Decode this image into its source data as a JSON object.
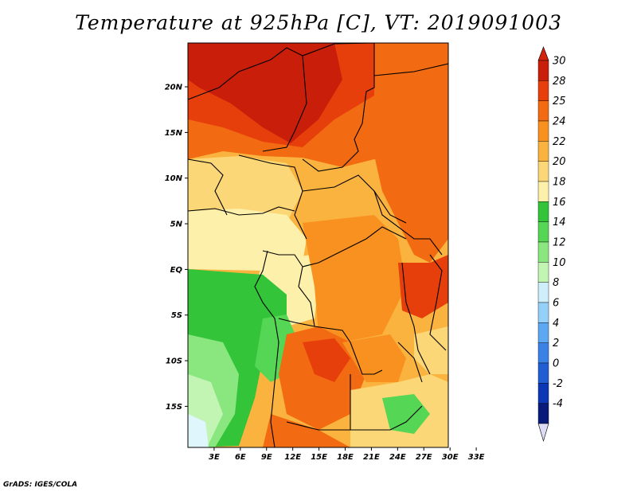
{
  "title": "Temperature at 925hPa [C], VT: 2019091003",
  "credit": "GrADS: IGES/COLA",
  "map": {
    "lat_labels": [
      "20N",
      "15N",
      "10N",
      "5N",
      "EQ",
      "5S",
      "10S",
      "15S"
    ],
    "lon_labels": [
      "3E",
      "6E",
      "9E",
      "12E",
      "15E",
      "18E",
      "21E",
      "24E",
      "27E",
      "30E",
      "33E"
    ],
    "lat_range": [
      -19.5,
      24.8
    ],
    "lon_range": [
      0,
      29.8
    ]
  },
  "colorbar": {
    "labels": [
      "30",
      "28",
      "25",
      "24",
      "22",
      "20",
      "18",
      "16",
      "14",
      "12",
      "10",
      "8",
      "6",
      "4",
      "2",
      "0",
      "-2",
      "-4"
    ],
    "colors": [
      "#c91e0a",
      "#e63f0c",
      "#f26a12",
      "#f99120",
      "#fbb33f",
      "#fcd777",
      "#fdf0aa",
      "#33c43a",
      "#55d654",
      "#8ae67f",
      "#c2f5b4",
      "#cfeefc",
      "#95d0f9",
      "#5ca8f2",
      "#3b82e6",
      "#1f5fd3",
      "#0d38b5",
      "#081a7a"
    ],
    "top_color": "#d4230b",
    "bottom_color": "#dcdcf5"
  }
}
